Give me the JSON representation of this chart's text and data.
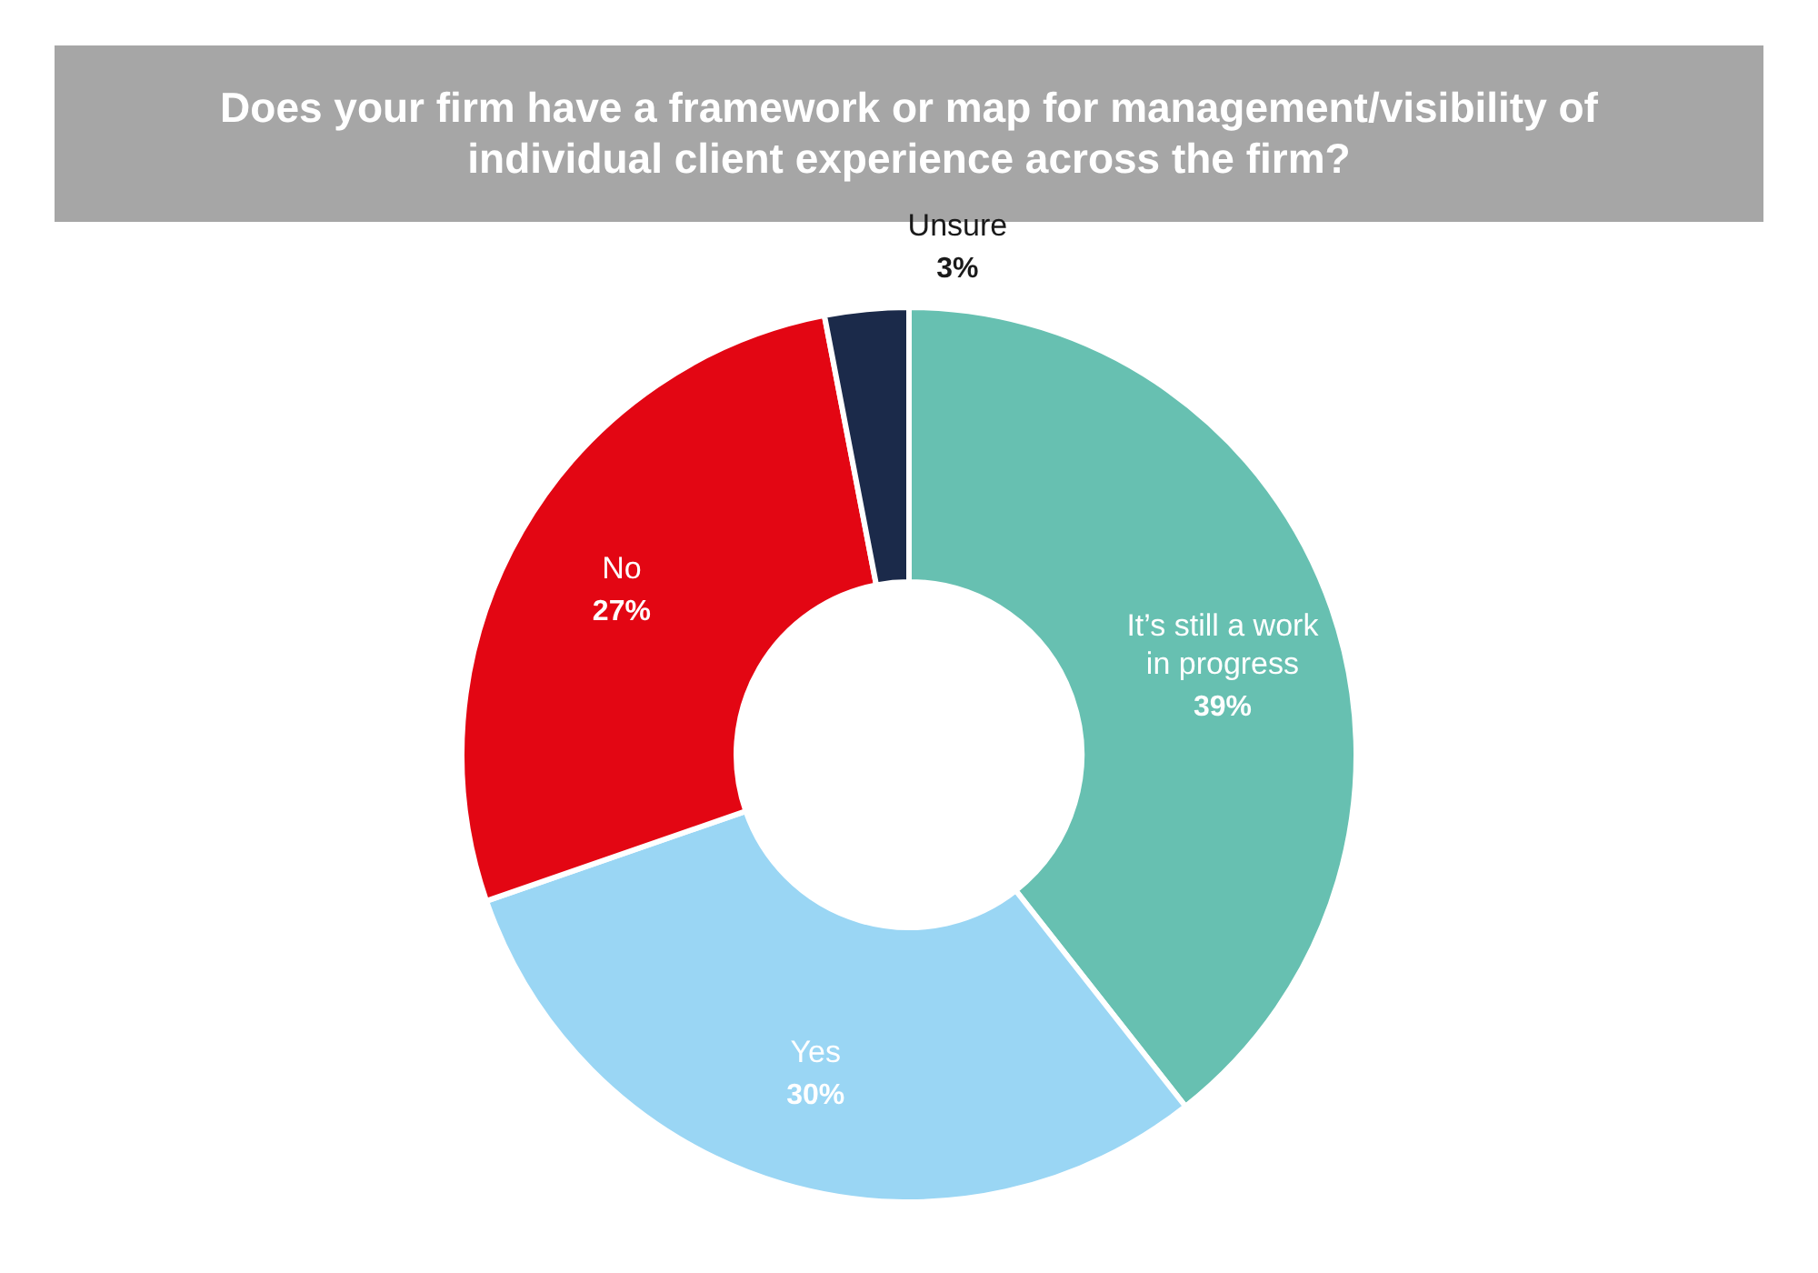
{
  "chart_data": {
    "type": "donut",
    "title": "Does your firm have a framework or map for management/visibility of individual client experience across the firm?",
    "categories": [
      "It’s still a work in progress",
      "Yes",
      "No",
      "Unsure"
    ],
    "values": [
      39,
      30,
      27,
      3
    ],
    "colors": [
      "#67c0b1",
      "#9ad6f4",
      "#e30613",
      "#1b2a4a"
    ],
    "value_labels": [
      "39%",
      "30%",
      "27%",
      "3%"
    ]
  }
}
